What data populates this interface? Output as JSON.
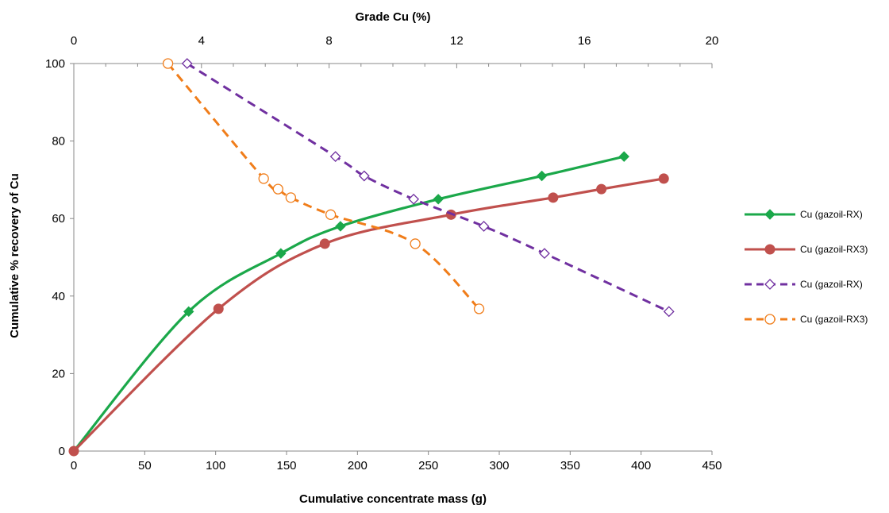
{
  "chart_data": {
    "type": "scatter",
    "xlabel": "Cumulative concentrate mass (g)",
    "x2label": "Grade Cu (%)",
    "ylabel": "Cumulative % recovery of Cu",
    "xlim": [
      0,
      450
    ],
    "x2lim": [
      0,
      20
    ],
    "ylim": [
      0,
      100
    ],
    "x_ticks": [
      0,
      50,
      100,
      150,
      200,
      250,
      300,
      350,
      400,
      450
    ],
    "x2_ticks": [
      0,
      4,
      8,
      12,
      16,
      20
    ],
    "y_ticks": [
      0,
      20,
      40,
      60,
      80,
      100
    ],
    "x_tick_labels": [
      "0",
      "50",
      "100",
      "150",
      "200",
      "250",
      "300",
      "350",
      "400",
      "450"
    ],
    "x2_tick_labels": [
      "0",
      "4",
      "8",
      "12",
      "16",
      "20"
    ],
    "y_tick_labels": [
      "0",
      "20",
      "40",
      "60",
      "80",
      "100"
    ],
    "grid": false,
    "legend_position": "right",
    "series": [
      {
        "name": "Cu (gazoil-RX)",
        "axis": "bottom",
        "color": "#1BA84A",
        "marker": "filled-diamond",
        "line": "solid",
        "x": [
          0,
          81,
          146,
          188,
          257,
          330,
          388
        ],
        "y": [
          0,
          36,
          51,
          58,
          65,
          71,
          76
        ]
      },
      {
        "name": "Cu (gazoil-RX3)",
        "axis": "bottom",
        "color": "#C0504D",
        "marker": "filled-circle",
        "line": "solid",
        "x": [
          0,
          102,
          177,
          266,
          338,
          372,
          416
        ],
        "y": [
          0,
          36.7,
          53.5,
          61,
          65.4,
          67.6,
          70.3
        ]
      },
      {
        "name": "Cu (gazoil-RX)",
        "axis": "top",
        "color": "#7030A0",
        "marker": "open-diamond",
        "line": "dashed",
        "x": [
          3.55,
          8.2,
          9.1,
          10.65,
          12.85,
          14.75,
          18.65
        ],
        "y": [
          100,
          76,
          71,
          65,
          58,
          51,
          36
        ]
      },
      {
        "name": "Cu (gazoil-RX3)",
        "axis": "top",
        "color": "#F07D1A",
        "marker": "open-circle",
        "line": "dashed",
        "x": [
          2.95,
          5.95,
          6.4,
          6.8,
          8.05,
          10.7,
          12.7
        ],
        "y": [
          100,
          70.3,
          67.6,
          65.4,
          61,
          53.5,
          36.7
        ]
      }
    ]
  }
}
